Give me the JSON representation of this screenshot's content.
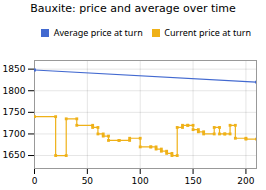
{
  "chart_data": {
    "type": "line",
    "title": "Bauxite: price and average over time",
    "series": [
      {
        "name": "Average price at turn",
        "marker": "square",
        "x": [
          0,
          210
        ],
        "values": [
          1848,
          1820
        ]
      },
      {
        "name": "Current price at turn",
        "marker": "square",
        "x": [
          0,
          20,
          20,
          30,
          30,
          40,
          40,
          55,
          55,
          60,
          60,
          65,
          65,
          70,
          70,
          80,
          80,
          90,
          90,
          100,
          100,
          110,
          110,
          115,
          115,
          120,
          120,
          125,
          125,
          130,
          130,
          135,
          135,
          140,
          140,
          145,
          145,
          150,
          150,
          155,
          155,
          160,
          160,
          170,
          170,
          175,
          175,
          180,
          180,
          185,
          185,
          190,
          190,
          200,
          200,
          210
        ],
        "values": [
          1740,
          1740,
          1650,
          1650,
          1735,
          1735,
          1720,
          1720,
          1715,
          1715,
          1700,
          1700,
          1695,
          1695,
          1685,
          1685,
          1685,
          1685,
          1690,
          1690,
          1670,
          1670,
          1670,
          1670,
          1665,
          1665,
          1660,
          1660,
          1655,
          1655,
          1650,
          1650,
          1715,
          1715,
          1720,
          1720,
          1720,
          1720,
          1710,
          1710,
          1705,
          1705,
          1700,
          1700,
          1715,
          1715,
          1700,
          1700,
          1700,
          1700,
          1720,
          1720,
          1690,
          1690,
          1688,
          1688
        ]
      }
    ],
    "xlim": [
      0,
      210
    ],
    "xticks": [
      0,
      50,
      100,
      150,
      200
    ],
    "ylim": [
      1620,
      1870
    ],
    "yticks": [
      1650,
      1700,
      1750,
      1800,
      1850
    ],
    "grid": true,
    "legend": "upper right"
  }
}
